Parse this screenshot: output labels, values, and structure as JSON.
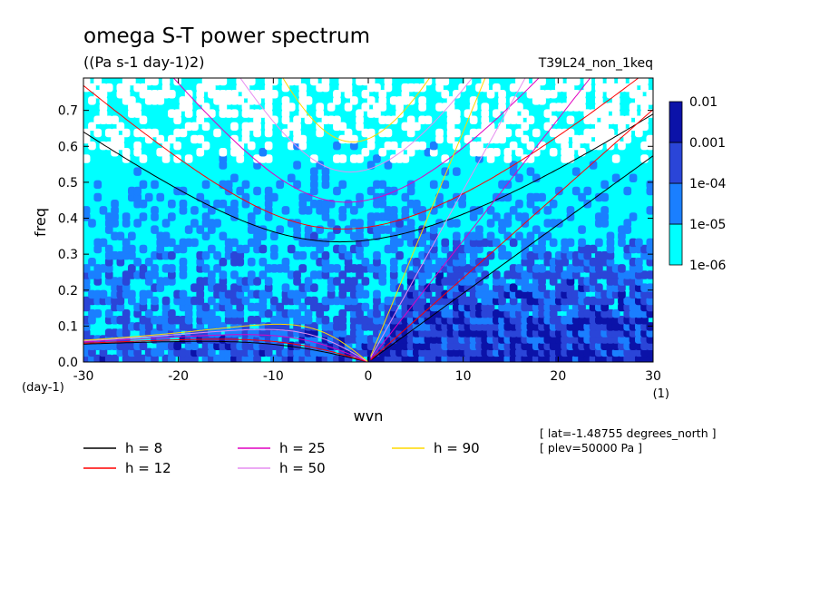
{
  "chart_data": {
    "type": "heatmap",
    "title": "omega S-T power spectrum",
    "units_label": "((Pa s-1 day-1)2)",
    "experiment_label": "T39L24_non_1keq",
    "xlabel": "wvn",
    "ylabel": "freq",
    "x_units": "(1)",
    "y_units": "(day-1)",
    "xlim": [
      -30,
      30
    ],
    "ylim": [
      0,
      0.79
    ],
    "x_ticks": [
      -30,
      -20,
      -10,
      0,
      10,
      20,
      30
    ],
    "x_tick_labels": [
      "-30",
      "-20",
      "-10",
      "0",
      "10",
      "20",
      "30"
    ],
    "y_ticks": [
      0,
      0.1,
      0.2,
      0.3,
      0.4,
      0.5,
      0.6,
      0.7
    ],
    "y_tick_labels": [
      "0.0",
      "0.1",
      "0.2",
      "0.3",
      "0.4",
      "0.5",
      "0.6",
      "0.7"
    ],
    "colorbar": {
      "levels": [
        1e-06,
        1e-05,
        0.0001,
        0.001,
        0.01
      ],
      "labels": [
        "1e-06",
        "1e-05",
        "1e-04",
        "0.001",
        "0.01"
      ],
      "colors": [
        "#00ffff",
        "#1a7fff",
        "#2a45d8",
        "#0b12a8",
        "#4a12a8"
      ]
    },
    "dispersion_curves": [
      {
        "name": "h = 8",
        "label": "h =  8",
        "h": 8,
        "color": "#000000"
      },
      {
        "name": "h = 12",
        "label": "h = 12",
        "h": 12,
        "color": "#ff0000"
      },
      {
        "name": "h = 25",
        "label": "h = 25",
        "h": 25,
        "color": "#e000c0"
      },
      {
        "name": "h = 50",
        "label": "h = 50",
        "h": 50,
        "color": "#e68ef0"
      },
      {
        "name": "h = 90",
        "label": "h = 90",
        "h": 90,
        "color": "#ffd800"
      }
    ],
    "annotations": [
      "[ lat=-1.48755 degrees_north ]",
      "[ plev=50000 Pa ]"
    ]
  }
}
